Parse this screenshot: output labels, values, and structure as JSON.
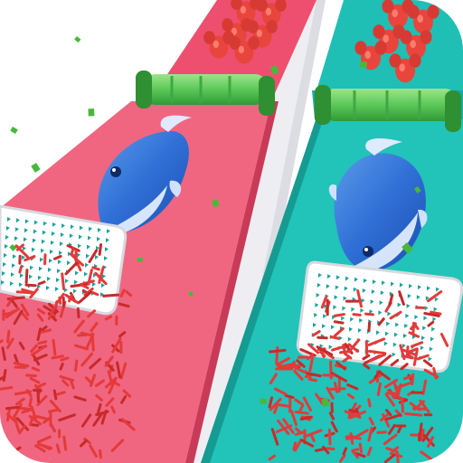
{
  "game": {
    "lanes": [
      {
        "id": "left",
        "color": "#ef4f6e",
        "floor_color": "#f07a92",
        "side_color": "#c93a58"
      },
      {
        "id": "right",
        "color": "#1fbfb5",
        "floor_color": "#2fd0c4",
        "side_color": "#159b92"
      }
    ],
    "separator_color": "#e8e8ec",
    "roller_color": "#6bd26a",
    "lobster_color": "#e8453c",
    "whale_colors": {
      "body": "#2f6fd6",
      "belly": "#e9f3ff",
      "mid": "#5a9ae8"
    },
    "grater_color": "#ffffff",
    "grater_tooth_color": "#1aa39a",
    "shred_color": "#e43a3a",
    "leaf_color": "#49b83a",
    "icons": [
      "lobster-icon",
      "whale-icon",
      "grater-icon",
      "roller-icon",
      "leaf-icon"
    ]
  }
}
